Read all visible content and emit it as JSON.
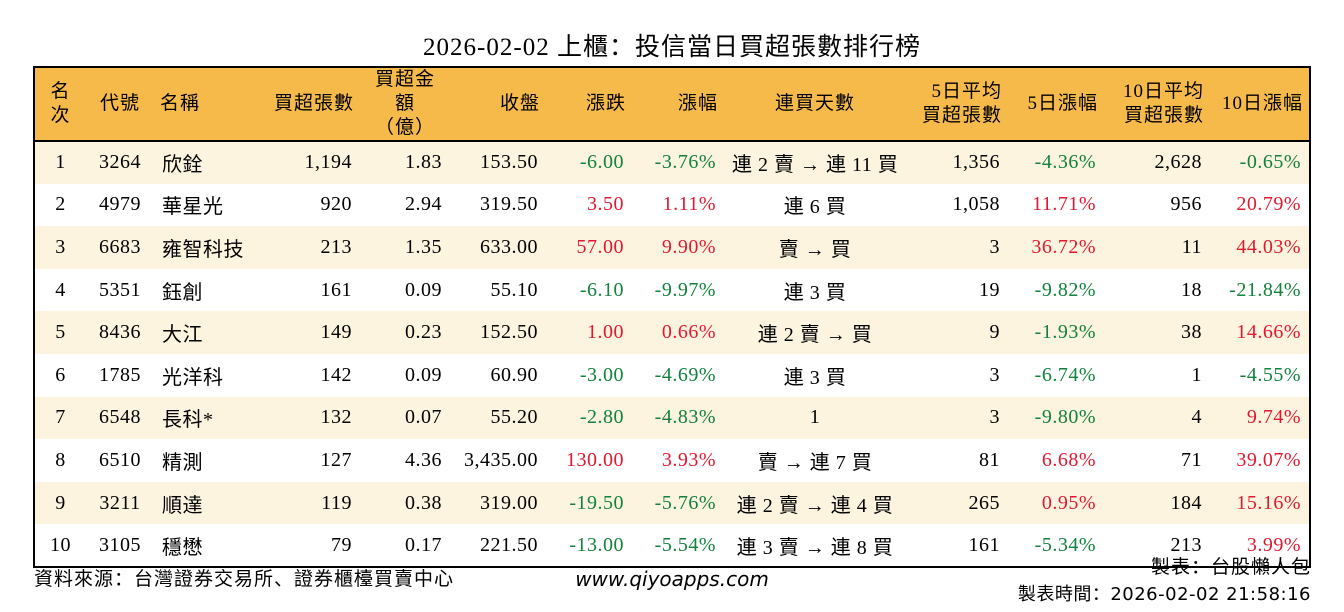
{
  "colors": {
    "header_bg": "#f6ba4a",
    "row_alt_bg": "#fcf4de",
    "up_red": "#e01931",
    "down_green": "#12823c",
    "border": "#000000"
  },
  "chart_data": {
    "type": "table",
    "title": "2026-02-02 上櫃：投信當日買超張數排行榜",
    "columns": [
      {
        "key": "rank",
        "label": "名次",
        "align": "center"
      },
      {
        "key": "code",
        "label": "代號",
        "align": "center"
      },
      {
        "key": "name",
        "label": "名稱",
        "align": "left"
      },
      {
        "key": "net_buy_lots",
        "label": "買超張數",
        "align": "right"
      },
      {
        "key": "net_buy_amount",
        "label": "買超金額\n（億）",
        "align": "right",
        "header_align": "center"
      },
      {
        "key": "close",
        "label": "收盤",
        "align": "right"
      },
      {
        "key": "change",
        "label": "漲跌",
        "align": "right",
        "signed": true
      },
      {
        "key": "change_pct",
        "label": "漲幅",
        "align": "right",
        "signed": true
      },
      {
        "key": "streak",
        "label": "連買天數",
        "align": "center"
      },
      {
        "key": "avg5_net_buy",
        "label": "5日平均\n買超張數",
        "align": "right"
      },
      {
        "key": "pct5",
        "label": "5日漲幅",
        "align": "right",
        "signed": true
      },
      {
        "key": "avg10_net_buy",
        "label": "10日平均\n買超張數",
        "align": "right"
      },
      {
        "key": "pct10",
        "label": "10日漲幅",
        "align": "right",
        "signed": true
      }
    ],
    "rows": [
      [
        "1",
        "3264",
        "欣銓",
        "1,194",
        "1.83",
        "153.50",
        "-6.00",
        "-3.76%",
        "連 2 賣 → 連 11 買",
        "1,356",
        "-4.36%",
        "2,628",
        "-0.65%"
      ],
      [
        "2",
        "4979",
        "華星光",
        "920",
        "2.94",
        "319.50",
        "3.50",
        "1.11%",
        "連 6 買",
        "1,058",
        "11.71%",
        "956",
        "20.79%"
      ],
      [
        "3",
        "6683",
        "雍智科技",
        "213",
        "1.35",
        "633.00",
        "57.00",
        "9.90%",
        "賣 → 買",
        "3",
        "36.72%",
        "11",
        "44.03%"
      ],
      [
        "4",
        "5351",
        "鈺創",
        "161",
        "0.09",
        "55.10",
        "-6.10",
        "-9.97%",
        "連 3 買",
        "19",
        "-9.82%",
        "18",
        "-21.84%"
      ],
      [
        "5",
        "8436",
        "大江",
        "149",
        "0.23",
        "152.50",
        "1.00",
        "0.66%",
        "連 2 賣 → 買",
        "9",
        "-1.93%",
        "38",
        "14.66%"
      ],
      [
        "6",
        "1785",
        "光洋科",
        "142",
        "0.09",
        "60.90",
        "-3.00",
        "-4.69%",
        "連 3 買",
        "3",
        "-6.74%",
        "1",
        "-4.55%"
      ],
      [
        "7",
        "6548",
        "長科*",
        "132",
        "0.07",
        "55.20",
        "-2.80",
        "-4.83%",
        "1",
        "3",
        "-9.80%",
        "4",
        "9.74%"
      ],
      [
        "8",
        "6510",
        "精測",
        "127",
        "4.36",
        "3,435.00",
        "130.00",
        "3.93%",
        "賣 → 連 7 買",
        "81",
        "6.68%",
        "71",
        "39.07%"
      ],
      [
        "9",
        "3211",
        "順達",
        "119",
        "0.38",
        "319.00",
        "-19.50",
        "-5.76%",
        "連 2 賣 → 連 4 買",
        "265",
        "0.95%",
        "184",
        "15.16%"
      ],
      [
        "10",
        "3105",
        "穩懋",
        "79",
        "0.17",
        "221.50",
        "-13.00",
        "-5.54%",
        "連 3 賣 → 連 8 買",
        "161",
        "-5.34%",
        "213",
        "3.99%"
      ]
    ]
  },
  "footer": {
    "source": "資料來源：台灣證券交易所、證券櫃檯買賣中心",
    "website": "www.qiyoapps.com",
    "made_by": "製表：台股懶人包",
    "made_at": "製表時間：2026-02-02 21:58:16"
  }
}
